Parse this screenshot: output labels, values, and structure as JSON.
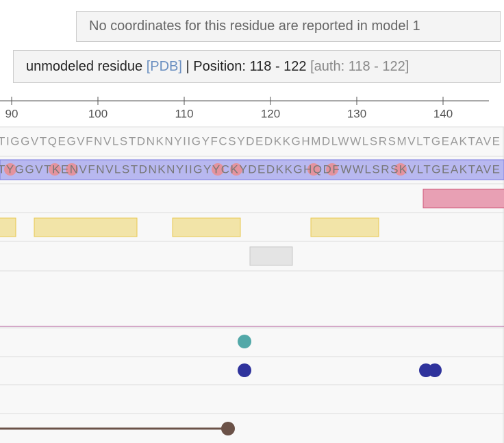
{
  "tooltip_coordinates": {
    "text": "No coordinates for this residue are reported in model 1"
  },
  "tooltip_residue": {
    "label": "unmodeled residue",
    "link": "[PDB]",
    "position": "| Position: 118 - 122",
    "auth": "[auth: 118 - 122]"
  },
  "axis": {
    "ticks": [
      90,
      100,
      110,
      120,
      130,
      140
    ]
  },
  "tracks": {
    "sequence": "TIGGVTQEGVFNVLSTDNKNYIIGYFCSYDEDKKGHMDLWWLSRSMVLTGEAKTAVE",
    "variant_sequence": "TYGGVTKENVFNVLSTDNKNYIIGYYCKYDEDKKGHQDFWWLSRSKVLTGEAKTAVE"
  }
}
